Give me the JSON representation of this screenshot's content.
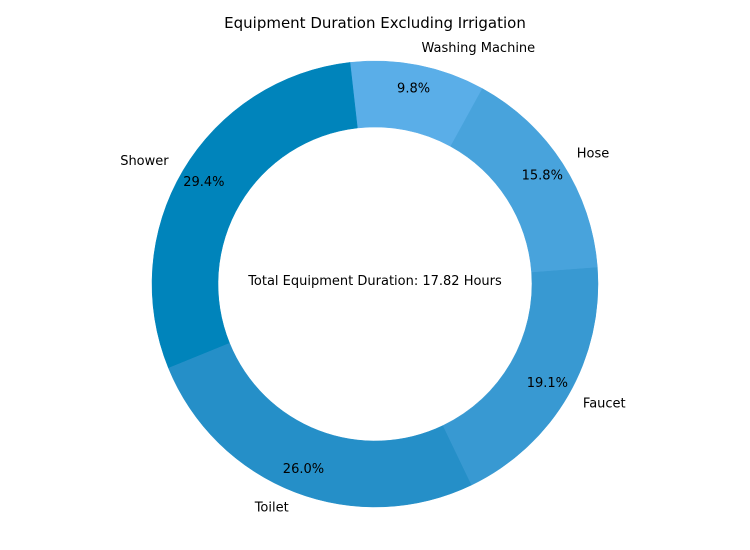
{
  "chart_data": {
    "type": "pie",
    "title": "Equipment Duration Excluding Irrigation",
    "center_text": "Total Equipment Duration: 17.82 Hours",
    "donut": true,
    "slices": [
      {
        "label": "Washing Machine",
        "value": 9.8,
        "pct_label": "9.8%",
        "color": "#5aaee8"
      },
      {
        "label": "Shower",
        "value": 29.4,
        "pct_label": "29.4%",
        "color": "#0084bb"
      },
      {
        "label": "Toilet",
        "value": 26.0,
        "pct_label": "26.0%",
        "color": "#258fc8"
      },
      {
        "label": "Faucet",
        "value": 19.1,
        "pct_label": "19.1%",
        "color": "#3899d2"
      },
      {
        "label": "Hose",
        "value": 15.8,
        "pct_label": "15.8%",
        "color": "#48a3dc"
      }
    ]
  }
}
